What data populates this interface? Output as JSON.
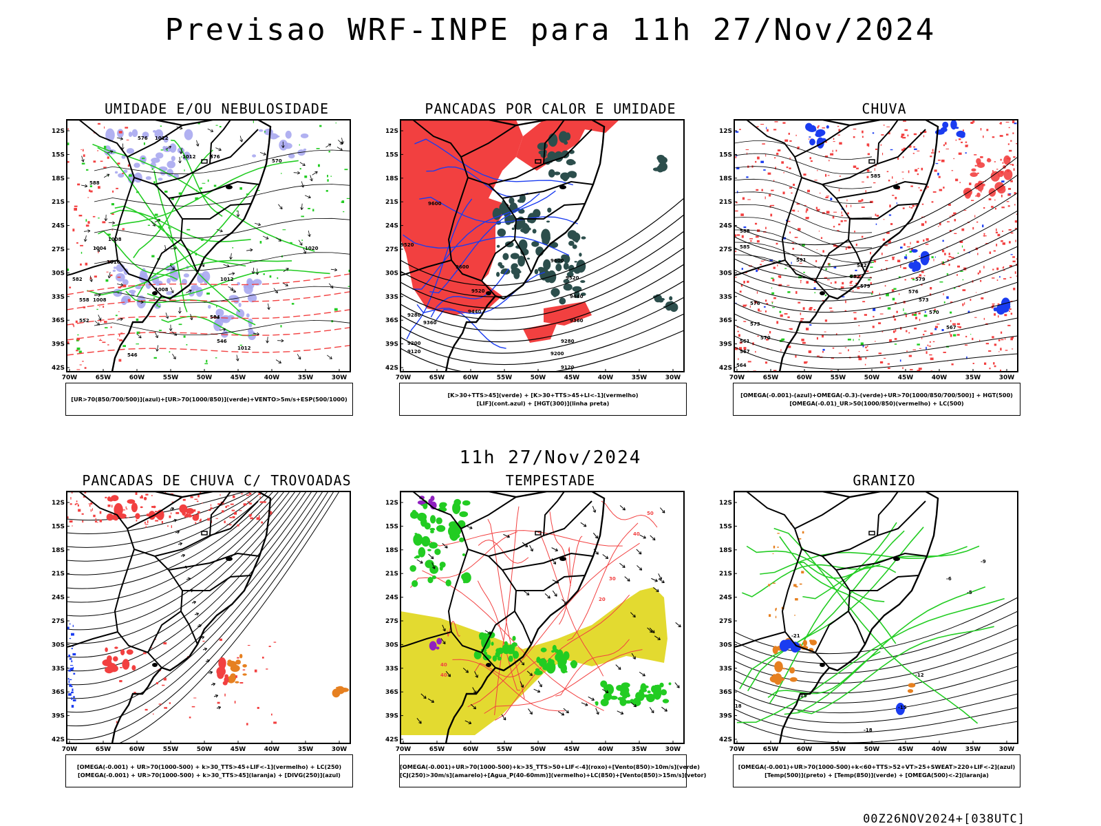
{
  "title": "Previsao WRF-INPE  para 11h 27/Nov/2024",
  "mid_title": "11h 27/Nov/2024",
  "footer": "00Z26NOV2024+[038UTC]",
  "axes": {
    "lat_labels": [
      "12S",
      "15S",
      "18S",
      "21S",
      "24S",
      "27S",
      "30S",
      "33S",
      "36S",
      "39S",
      "42S"
    ],
    "lon_labels": [
      "70W",
      "65W",
      "60W",
      "55W",
      "50W",
      "45W",
      "40W",
      "35W",
      "30W"
    ]
  },
  "colors": {
    "red": "#f24040",
    "green": "#22cc22",
    "blue": "#1a3cf0",
    "lavender": "#a8a8f0",
    "teal": "#2c4e4c",
    "yellow": "#e3da30",
    "orange": "#e68020",
    "purple": "#9020c0"
  },
  "panels": [
    {
      "title": "UMIDADE E/OU NEBULOSIDADE",
      "legend": [
        "[UR>70(850/700/500)](azul)+[UR>70(1000/850)](verde)+VENTO>5m/s+ESP(500/1000)"
      ]
    },
    {
      "title": "PANCADAS POR CALOR E UMIDADE",
      "legend": [
        "[K>30+TTS>45](verde) + [K>30+TTS>45+LI<-1](vermelho)",
        "[LIF](cont.azul) + [HGT(300)](linha preta)"
      ]
    },
    {
      "title": "CHUVA",
      "legend": [
        "[OMEGA(-0.001)-(azul)+OMEGA(-0.3)-(verde)+UR>70(1000/850/700/500)] + HGT(500)",
        "[OMEGA(-0.01)_UR>50(1000/850)(vermelho) + LC(500)"
      ]
    },
    {
      "title": "PANCADAS DE CHUVA C/ TROVOADAS",
      "legend": [
        "[OMEGA(-0.001) + UR>70(1000-500) + k>30_TTS>45+LIF<-1](vermelho) + LC(250)",
        "[OMEGA(-0.001) + UR>70(1000-500) + k>30_TTS>45](laranja) + [DIVG(250)](azul)"
      ]
    },
    {
      "title": "TEMPESTADE",
      "legend": [
        "[OMEGA(-0.001)+UR>70(1000-500)+k>35_TTS>50+LIF<-4](roxo)+[Vento(850)>10m/s](verde)",
        "[CJ(250)>30m/s](amarelo)+[Agua_P(40-60mm)](vermelho)+LC(850)+[Vento(850)>15m/s](vetor)"
      ]
    },
    {
      "title": "GRANIZO",
      "legend": [
        "[OMEGA(-0.001)+UR>70(1000-500)+k<60+TTS>52+VT>25+SWEAT>220+LIF<-2](azul)",
        "[Temp(500)](preto) + [Temp(850)](verde) + [OMEGA(500)<-2](laranja)"
      ]
    }
  ],
  "contour_labels": {
    "p1": [
      "1012",
      "1012",
      "1008",
      "1004",
      "1008",
      "1016",
      "1020",
      "1012",
      "1012",
      "1008",
      "576",
      "576",
      "570",
      "564",
      "558",
      "552",
      "546",
      "546",
      "588",
      "582"
    ],
    "p2": [
      "9600",
      "9520",
      "9600",
      "9520",
      "9440",
      "9360",
      "9280",
      "9200",
      "9120",
      "9600",
      "9520",
      "9440",
      "9360",
      "9280",
      "9200",
      "9120"
    ],
    "p3": [
      "585",
      "591",
      "588",
      "585",
      "582",
      "579",
      "576",
      "573",
      "570",
      "567",
      "564",
      "561",
      "582",
      "579",
      "576",
      "573",
      "570",
      "567"
    ],
    "p5": [
      "40",
      "40",
      "50",
      "40",
      "30",
      "20"
    ],
    "p6": [
      "-12",
      "-15",
      "-15",
      "-18",
      "-18",
      "-21",
      "-6",
      "-5",
      "-9"
    ]
  }
}
